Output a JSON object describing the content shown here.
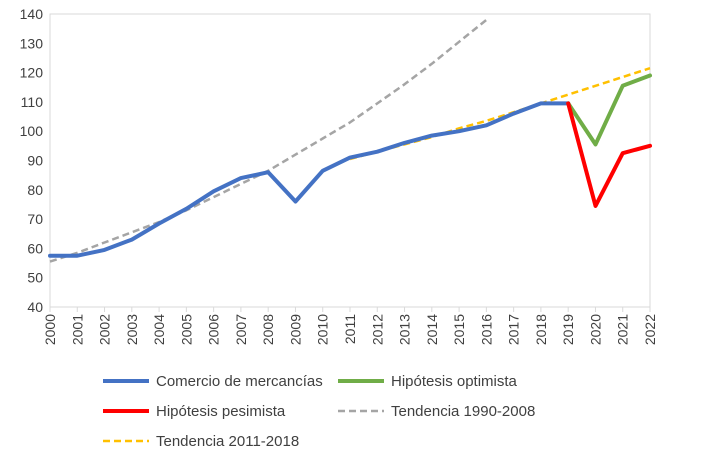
{
  "chart_data": {
    "type": "line",
    "title": "",
    "xlabel": "",
    "ylabel": "",
    "x": [
      "2000",
      "2001",
      "2002",
      "2003",
      "2004",
      "2005",
      "2006",
      "2007",
      "2008",
      "2009",
      "2010",
      "2011",
      "2012",
      "2013",
      "2014",
      "2015",
      "2016",
      "2017",
      "2018",
      "2019",
      "2020",
      "2021",
      "2022"
    ],
    "ylim": [
      40,
      140
    ],
    "yticks": [
      40,
      50,
      60,
      70,
      80,
      90,
      100,
      110,
      120,
      130,
      140
    ],
    "grid": false,
    "legend_position": "bottom",
    "series": [
      {
        "name": "Comercio de mercancías",
        "color": "#4472C4",
        "style": "solid",
        "x": [
          "2000",
          "2001",
          "2002",
          "2003",
          "2004",
          "2005",
          "2006",
          "2007",
          "2008",
          "2009",
          "2010",
          "2011",
          "2012",
          "2013",
          "2014",
          "2015",
          "2016",
          "2017",
          "2018",
          "2019"
        ],
        "values": [
          57.5,
          57.5,
          59.5,
          63,
          68.5,
          73.5,
          79.5,
          84,
          86,
          76,
          86.5,
          91,
          93,
          96,
          98.5,
          100,
          102,
          106,
          109.5,
          109.5
        ]
      },
      {
        "name": "Hipótesis optimista",
        "color": "#70AD47",
        "style": "solid",
        "x": [
          "2019",
          "2020",
          "2021",
          "2022"
        ],
        "values": [
          109.5,
          95.5,
          115.5,
          119
        ]
      },
      {
        "name": "Hipótesis pesimista",
        "color": "#FF0000",
        "style": "solid",
        "x": [
          "2019",
          "2020",
          "2021",
          "2022"
        ],
        "values": [
          109.5,
          74.5,
          92.5,
          95
        ]
      },
      {
        "name": "Tendencia 1990-2008",
        "color": "#A5A5A5",
        "style": "dashed",
        "x": [
          "2000",
          "2001",
          "2002",
          "2003",
          "2004",
          "2005",
          "2006",
          "2007",
          "2008",
          "2009",
          "2010",
          "2011",
          "2012",
          "2013",
          "2014",
          "2015",
          "2016"
        ],
        "values": [
          55.5,
          58.5,
          62,
          65.5,
          69,
          73,
          77.5,
          82,
          86.5,
          92,
          97.5,
          103,
          109.5,
          116,
          123,
          130.5,
          138
        ]
      },
      {
        "name": "Tendencia 2011-2018",
        "color": "#FFC000",
        "style": "dashed",
        "x": [
          "2011",
          "2012",
          "2013",
          "2014",
          "2015",
          "2016",
          "2017",
          "2018",
          "2019",
          "2020",
          "2021",
          "2022"
        ],
        "values": [
          90.5,
          93,
          95.5,
          98,
          101,
          103.5,
          106.5,
          109.5,
          112.5,
          115.5,
          118.5,
          121.5
        ]
      }
    ]
  }
}
